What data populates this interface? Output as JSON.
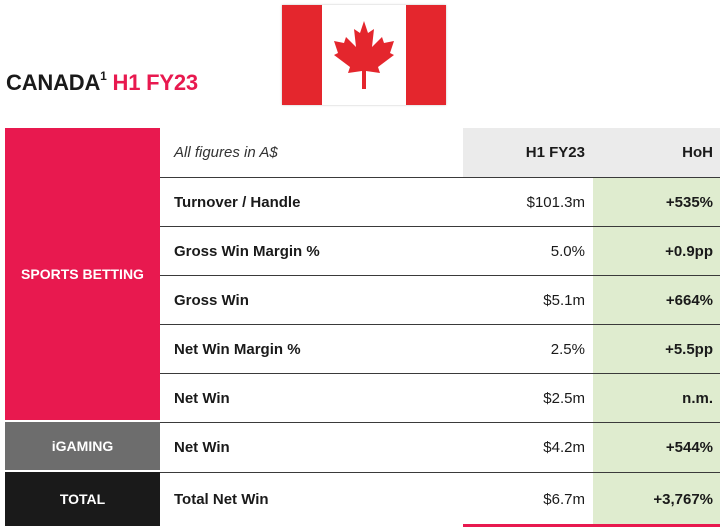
{
  "title": {
    "main": "CANADA",
    "sup": "1",
    "period": "H1 FY23"
  },
  "flag": {
    "colors": {
      "red": "#e4262d",
      "white": "#ffffff"
    },
    "icon": "maple-leaf-icon"
  },
  "colors": {
    "accent": "#e8194f",
    "igaming": "#6d6d6d",
    "total": "#1a1a1a",
    "positive_bg": "#dfeccf"
  },
  "table": {
    "segments": {
      "sports": "SPORTS BETTING",
      "igaming": "iGAMING",
      "total": "TOTAL"
    },
    "header": {
      "note": "All figures in A$",
      "col1": "H1 FY23",
      "col2": "HoH"
    },
    "rows": [
      {
        "label": "Turnover / Handle",
        "value": "$101.3m",
        "change": "+535%"
      },
      {
        "label": "Gross Win Margin %",
        "value": "5.0%",
        "change": "+0.9pp"
      },
      {
        "label": "Gross Win",
        "value": "$5.1m",
        "change": "+664%"
      },
      {
        "label": "Net Win Margin %",
        "value": "2.5%",
        "change": "+5.5pp"
      },
      {
        "label": "Net Win",
        "value": "$2.5m",
        "change": "n.m."
      },
      {
        "label": "Net Win",
        "value": "$4.2m",
        "change": "+544%"
      },
      {
        "label": "Total Net Win",
        "value": "$6.7m",
        "change": "+3,767%"
      }
    ]
  }
}
